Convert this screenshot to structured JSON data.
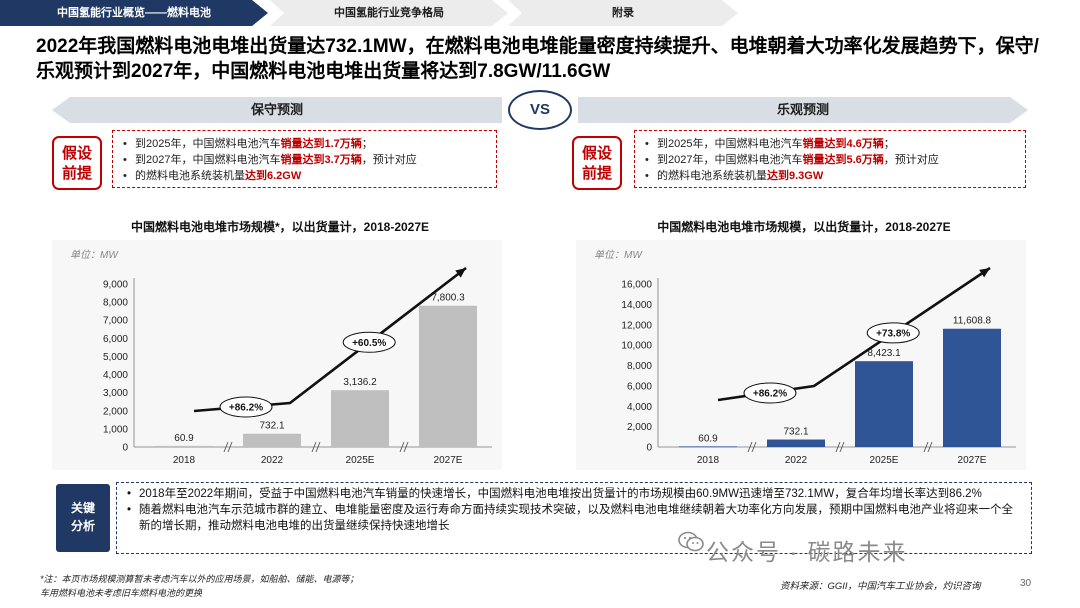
{
  "tabs": [
    {
      "label": "中国氢能行业概览——燃料电池"
    },
    {
      "label": "中国氢能行业竞争格局"
    },
    {
      "label": "附录"
    }
  ],
  "headline": "2022年我国燃料电池电堆出货量达732.1MW，在燃料电池电堆能量密度持续提升、电堆朝着大功率化发展趋势下，保守/乐观预计到2027年，中国燃料电池电堆出货量将达到7.8GW/11.6GW",
  "scenarios": {
    "left_label": "保守预测",
    "vs_label": "VS",
    "right_label": "乐观预测",
    "assumption_tag": "假设前提",
    "left_box": {
      "l1_pre": "到2025年，中国燃料电池汽车",
      "l1_red": "销量达到1.7万辆",
      "l1_end": "；",
      "l2_pre": "到2027年，中国燃料电池汽车",
      "l2_red": "销量达到3.7万辆",
      "l2_post": "，预计对应",
      "l3_pre": "的燃料电池系统装机量",
      "l3_red": "达到6.2GW"
    },
    "right_box": {
      "l1_pre": "到2025年，中国燃料电池汽车",
      "l1_red": "销量达到4.6万辆",
      "l1_end": "；",
      "l2_pre": "到2027年，中国燃料电池汽车",
      "l2_red": "销量达到5.6万辆",
      "l2_post": "，预计对应",
      "l3_pre": "的燃料电池系统装机量",
      "l3_red": "达到9.3GW"
    }
  },
  "chart_data": [
    {
      "type": "bar",
      "title": "中国燃料电池电堆市场规模*，以出货量计，2018-2027E",
      "unit": "单位：MW",
      "categories": [
        "2018",
        "2022",
        "2025E",
        "2027E"
      ],
      "values": [
        60.9,
        732.1,
        3136.2,
        7800.3
      ],
      "value_labels": [
        "60.9",
        "732.1",
        "3,136.2",
        "7,800.3"
      ],
      "ylim": [
        0,
        9000
      ],
      "yticks": [
        "0",
        "1,000",
        "2,000",
        "3,000",
        "4,000",
        "5,000",
        "6,000",
        "7,000",
        "8,000",
        "9,000"
      ],
      "growth_labels": [
        "+86.2%",
        "+60.5%"
      ],
      "bar_color": "#bfbfbf"
    },
    {
      "type": "bar",
      "title": "中国燃料电池电堆市场规模，以出货量计，2018-2027E",
      "unit": "单位：MW",
      "categories": [
        "2018",
        "2022",
        "2025E",
        "2027E"
      ],
      "values": [
        60.9,
        732.1,
        8423.1,
        11608.8
      ],
      "value_labels": [
        "60.9",
        "732.1",
        "8,423.1",
        "11,608.8"
      ],
      "ylim": [
        0,
        16000
      ],
      "yticks": [
        "0",
        "2,000",
        "4,000",
        "6,000",
        "8,000",
        "10,000",
        "12,000",
        "14,000",
        "16,000"
      ],
      "growth_labels": [
        "+86.2%",
        "+73.8%"
      ],
      "bar_color": "#2f5597"
    }
  ],
  "analysis": {
    "tag": "关键分析",
    "b1": "2018年至2022年期间，受益于中国燃料电池汽车销量的快速增长，中国燃料电池电堆按出货量计的市场规模由60.9MW迅速增至732.1MW，复合年均增长率达到86.2%",
    "b2": "随着燃料电池汽车示范城市群的建立、电堆能量密度及运行寿命方面持续实现技术突破，以及燃料电池电堆继续朝着大功率化方向发展，预期中国燃料电池产业将迎来一个全新的增长期，推动燃料电池电堆的出货量继续保持快速地增长"
  },
  "footnote": {
    "l1": "*注：本页市场规模测算暂未考虑汽车以外的应用场景，如船舶、储能、电源等；",
    "l2": "车用燃料电池未考虑旧车燃料电池的更换"
  },
  "source": "资料来源：GGII，中国汽车工业协会，灼识咨询",
  "page_number": "30",
  "watermark": "公众号 · 碳路未来",
  "colors": {
    "navy": "#1f3864",
    "red": "#c00000",
    "blue_bar": "#2f5597",
    "gray_bar": "#bfbfbf"
  }
}
